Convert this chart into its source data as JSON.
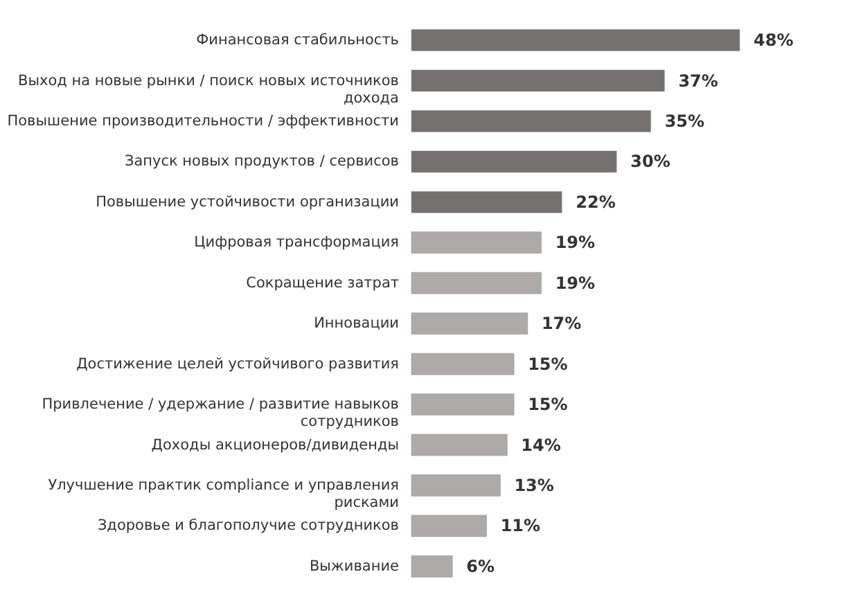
{
  "chart_data": {
    "type": "bar",
    "orientation": "horizontal",
    "categories": [
      "Финансовая стабильность",
      "Выход на новые рынки / поиск новых источников дохода",
      "Повышение производительности / эффективности",
      "Запуск новых продуктов / сервисов",
      "Повышение устойчивости организации",
      "Цифровая трансформация",
      "Сокращение затрат",
      "Инновации",
      "Достижение целей устойчивого развития",
      "Привлечение / удержание / развитие навыков сотрудников",
      "Доходы акционеров/дивиденды",
      "Улучшение практик compliance и управления рисками",
      "Здоровье и благополучие сотрудников",
      "Выживание"
    ],
    "values": [
      48,
      37,
      35,
      30,
      22,
      19,
      19,
      17,
      15,
      15,
      14,
      13,
      11,
      6
    ],
    "value_labels": [
      "48%",
      "37%",
      "35%",
      "30%",
      "22%",
      "19%",
      "19%",
      "17%",
      "15%",
      "15%",
      "14%",
      "13%",
      "11%",
      "6%"
    ],
    "colors": [
      "#767171",
      "#767171",
      "#767171",
      "#767171",
      "#767171",
      "#aeaaaa",
      "#aeaaaa",
      "#aeaaaa",
      "#aeaaaa",
      "#aeaaaa",
      "#aeaaaa",
      "#aeaaaa",
      "#aeaaaa",
      "#aeaaaa"
    ],
    "data_labels": true
  }
}
